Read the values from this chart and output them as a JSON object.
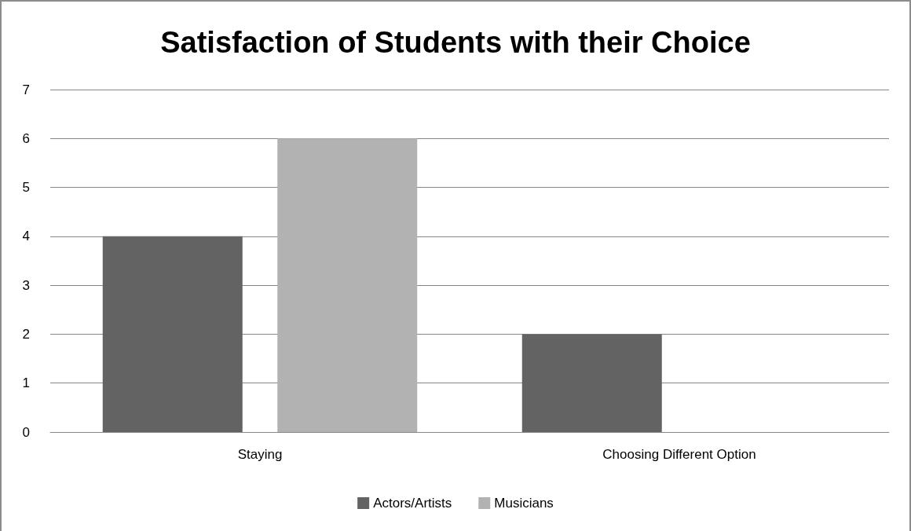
{
  "chart_data": {
    "type": "bar",
    "title": "Satisfaction of Students with their Choice",
    "categories": [
      "Staying",
      "Choosing Different Option"
    ],
    "series": [
      {
        "name": "Actors/Artists",
        "color": "#636363",
        "values": [
          4,
          2
        ]
      },
      {
        "name": "Musicians",
        "color": "#b2b2b2",
        "values": [
          6,
          0
        ]
      }
    ],
    "ylim": [
      0,
      7
    ],
    "yticks": [
      0,
      1,
      2,
      3,
      4,
      5,
      6,
      7
    ],
    "grid": "y",
    "legend": "bottom"
  }
}
